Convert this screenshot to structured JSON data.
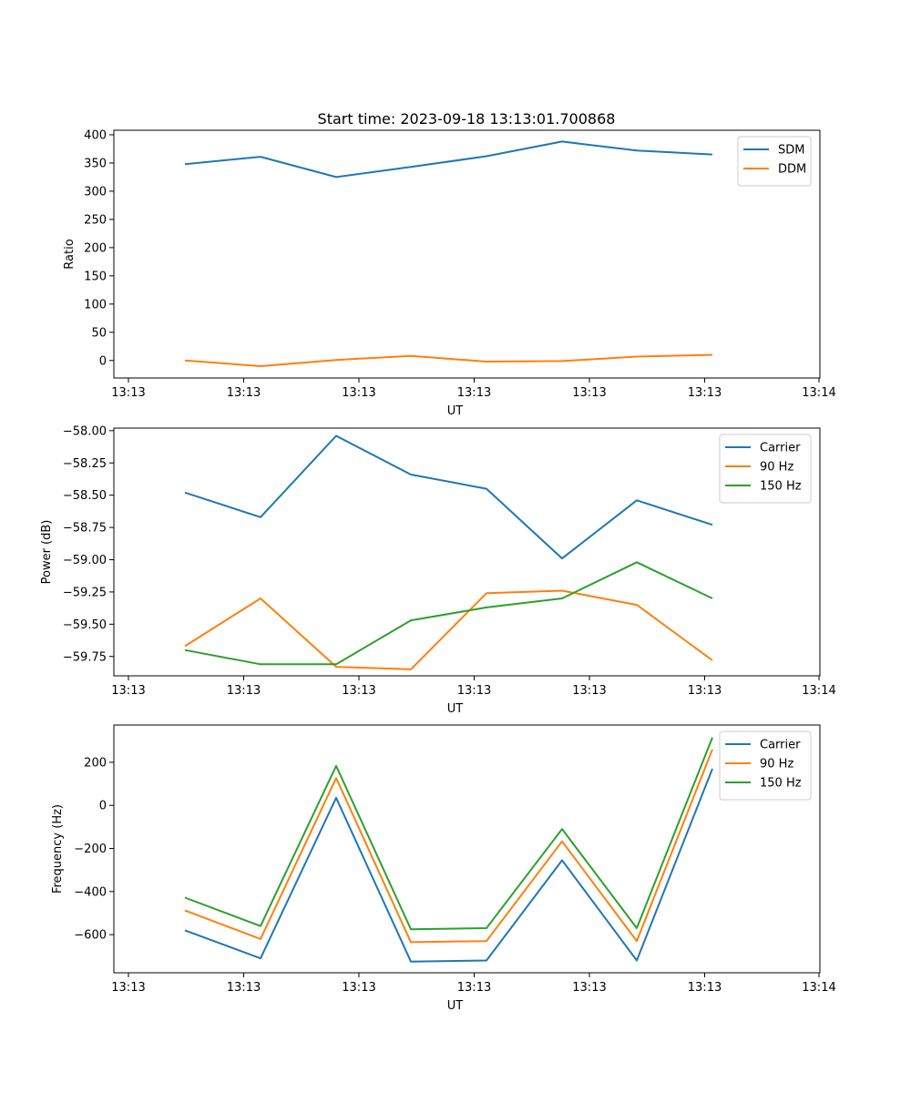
{
  "title": "Start time: 2023-09-18 13:13:01.700868",
  "colors": {
    "c0": "#1f77b4",
    "c1": "#ff7f0e",
    "c2": "#2ca02c"
  },
  "chart_data": [
    {
      "type": "line",
      "xlabel": "UT",
      "ylabel": "Ratio",
      "xticks": [
        "13:13",
        "13:13",
        "13:13",
        "13:13",
        "13:13",
        "13:13",
        "13:14"
      ],
      "yticks": [
        "0",
        "50",
        "100",
        "150",
        "200",
        "250",
        "300",
        "350",
        "400"
      ],
      "ytick_values": [
        0,
        50,
        100,
        150,
        200,
        250,
        300,
        350,
        400
      ],
      "ylim": [
        -31,
        408
      ],
      "legend_position": "upper right",
      "series": [
        {
          "name": "SDM",
          "values": [
            348,
            361,
            325,
            343,
            362,
            388,
            372,
            365
          ]
        },
        {
          "name": "DDM",
          "values": [
            0,
            -10,
            1,
            8,
            -2,
            -1,
            7,
            10
          ]
        }
      ]
    },
    {
      "type": "line",
      "xlabel": "UT",
      "ylabel": "Power (dB)",
      "xticks": [
        "13:13",
        "13:13",
        "13:13",
        "13:13",
        "13:13",
        "13:13",
        "13:14"
      ],
      "yticks": [
        "−59.75",
        "−59.50",
        "−59.25",
        "−59.00",
        "−58.75",
        "−58.50",
        "−58.25",
        "−58.00"
      ],
      "ytick_values": [
        -59.75,
        -59.5,
        -59.25,
        -59.0,
        -58.75,
        -58.5,
        -58.25,
        -58.0
      ],
      "ylim": [
        -59.9,
        -57.98
      ],
      "legend_position": "upper right",
      "series": [
        {
          "name": "Carrier",
          "values": [
            -58.48,
            -58.67,
            -58.04,
            -58.34,
            -58.45,
            -58.99,
            -58.54,
            -58.73
          ]
        },
        {
          "name": "90 Hz",
          "values": [
            -59.67,
            -59.3,
            -59.83,
            -59.85,
            -59.26,
            -59.24,
            -59.35,
            -59.78
          ]
        },
        {
          "name": "150 Hz",
          "values": [
            -59.7,
            -59.81,
            -59.81,
            -59.47,
            -59.37,
            -59.3,
            -59.02,
            -59.3
          ]
        }
      ]
    },
    {
      "type": "line",
      "xlabel": "UT",
      "ylabel": "Frequency (Hz)",
      "xticks": [
        "13:13",
        "13:13",
        "13:13",
        "13:13",
        "13:13",
        "13:13",
        "13:14"
      ],
      "yticks": [
        "−600",
        "−400",
        "−200",
        "0",
        "200"
      ],
      "ytick_values": [
        -600,
        -400,
        -200,
        0,
        200
      ],
      "ylim": [
        -777,
        373
      ],
      "legend_position": "upper right",
      "series": [
        {
          "name": "Carrier",
          "values": [
            -580,
            -710,
            35,
            -725,
            -720,
            -255,
            -720,
            170
          ]
        },
        {
          "name": "90 Hz",
          "values": [
            -488,
            -620,
            127,
            -635,
            -630,
            -167,
            -630,
            260
          ]
        },
        {
          "name": "150 Hz",
          "values": [
            -428,
            -560,
            183,
            -575,
            -570,
            -110,
            -570,
            315
          ]
        }
      ]
    }
  ]
}
